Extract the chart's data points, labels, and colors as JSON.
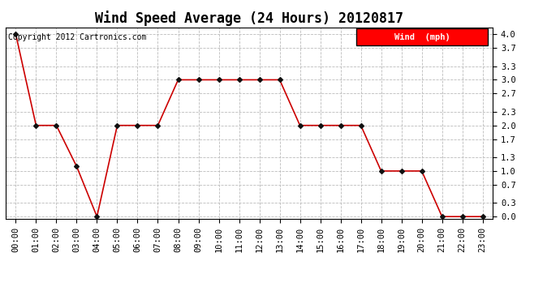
{
  "title": "Wind Speed Average (24 Hours) 20120817",
  "copyright_text": "Copyright 2012 Cartronics.com",
  "legend_label": "Wind  (mph)",
  "legend_bg": "#ff0000",
  "legend_fg": "#ffffff",
  "x_labels": [
    "00:00",
    "01:00",
    "02:00",
    "03:00",
    "04:00",
    "05:00",
    "06:00",
    "07:00",
    "08:00",
    "09:00",
    "10:00",
    "11:00",
    "12:00",
    "13:00",
    "14:00",
    "15:00",
    "16:00",
    "17:00",
    "18:00",
    "19:00",
    "20:00",
    "21:00",
    "22:00",
    "23:00"
  ],
  "y_values": [
    4.0,
    2.0,
    2.0,
    1.1,
    0.0,
    2.0,
    2.0,
    2.0,
    3.0,
    3.0,
    3.0,
    3.0,
    3.0,
    3.0,
    2.0,
    2.0,
    2.0,
    2.0,
    1.0,
    1.0,
    1.0,
    0.0,
    0.0,
    0.0
  ],
  "y_ticks": [
    0.0,
    0.3,
    0.7,
    1.0,
    1.3,
    1.7,
    2.0,
    2.3,
    2.7,
    3.0,
    3.3,
    3.7,
    4.0
  ],
  "ylim": [
    -0.05,
    4.15
  ],
  "line_color": "#cc0000",
  "marker_color": "#111111",
  "grid_color": "#bbbbbb",
  "bg_color": "#ffffff",
  "plot_bg": "#ffffff",
  "title_fontsize": 12,
  "copyright_fontsize": 7,
  "tick_fontsize": 7.5,
  "figsize": [
    6.9,
    3.75
  ],
  "dpi": 100
}
